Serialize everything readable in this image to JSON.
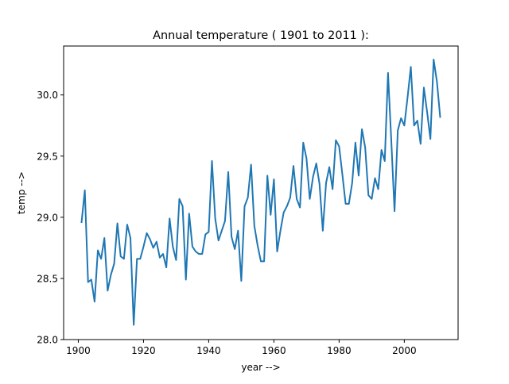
{
  "chart_data": {
    "type": "line",
    "title": "Annual temperature ( 1901 to 2011 ):",
    "xlabel": "year -->",
    "ylabel": "temp -->",
    "xlim": [
      1895.5,
      2016.5
    ],
    "ylim": [
      28.0,
      30.4
    ],
    "grid": false,
    "x_ticks": [
      1900,
      1920,
      1940,
      1960,
      1980,
      2000
    ],
    "x_tick_labels": [
      "1900",
      "1920",
      "1940",
      "1960",
      "1980",
      "2000"
    ],
    "y_ticks": [
      28.0,
      28.5,
      29.0,
      29.5,
      30.0
    ],
    "y_tick_labels": [
      "28.0",
      "28.5",
      "29.0",
      "29.5",
      "30.0"
    ],
    "series": [
      {
        "name": "temperature",
        "color": "#1f77b4",
        "x": [
          1901,
          1902,
          1903,
          1904,
          1905,
          1906,
          1907,
          1908,
          1909,
          1910,
          1911,
          1912,
          1913,
          1914,
          1915,
          1916,
          1917,
          1918,
          1919,
          1920,
          1921,
          1922,
          1923,
          1924,
          1925,
          1926,
          1927,
          1928,
          1929,
          1930,
          1931,
          1932,
          1933,
          1934,
          1935,
          1936,
          1937,
          1938,
          1939,
          1940,
          1941,
          1942,
          1943,
          1944,
          1945,
          1946,
          1947,
          1948,
          1949,
          1950,
          1951,
          1952,
          1953,
          1954,
          1955,
          1956,
          1957,
          1958,
          1959,
          1960,
          1961,
          1962,
          1963,
          1964,
          1965,
          1966,
          1967,
          1968,
          1969,
          1970,
          1971,
          1972,
          1973,
          1974,
          1975,
          1976,
          1977,
          1978,
          1979,
          1980,
          1981,
          1982,
          1983,
          1984,
          1985,
          1986,
          1987,
          1988,
          1989,
          1990,
          1991,
          1992,
          1993,
          1994,
          1995,
          1996,
          1997,
          1998,
          1999,
          2000,
          2001,
          2002,
          2003,
          2004,
          2005,
          2006,
          2007,
          2008,
          2009,
          2010,
          2011
        ],
        "values": [
          28.96,
          29.22,
          28.47,
          28.49,
          28.31,
          28.73,
          28.66,
          28.83,
          28.4,
          28.53,
          28.62,
          28.95,
          28.68,
          28.66,
          28.94,
          28.83,
          28.12,
          28.66,
          28.66,
          28.76,
          28.87,
          28.82,
          28.75,
          28.8,
          28.67,
          28.7,
          28.59,
          28.99,
          28.76,
          28.65,
          29.15,
          29.09,
          28.49,
          29.03,
          28.76,
          28.72,
          28.7,
          28.7,
          28.86,
          28.88,
          29.46,
          28.99,
          28.81,
          28.89,
          28.97,
          29.37,
          28.84,
          28.74,
          28.89,
          28.48,
          29.09,
          29.16,
          29.43,
          28.93,
          28.77,
          28.64,
          28.64,
          29.34,
          29.02,
          29.31,
          28.72,
          28.89,
          29.04,
          29.09,
          29.16,
          29.42,
          29.15,
          29.08,
          29.61,
          29.48,
          29.15,
          29.33,
          29.44,
          29.27,
          28.89,
          29.28,
          29.41,
          29.23,
          29.63,
          29.58,
          29.35,
          29.11,
          29.11,
          29.28,
          29.61,
          29.34,
          29.72,
          29.57,
          29.18,
          29.15,
          29.32,
          29.23,
          29.55,
          29.46,
          30.18,
          29.63,
          29.05,
          29.71,
          29.81,
          29.75,
          29.98,
          30.23,
          29.75,
          29.79,
          29.6,
          30.06,
          29.86,
          29.64,
          30.29,
          30.11,
          29.82
        ]
      }
    ]
  }
}
